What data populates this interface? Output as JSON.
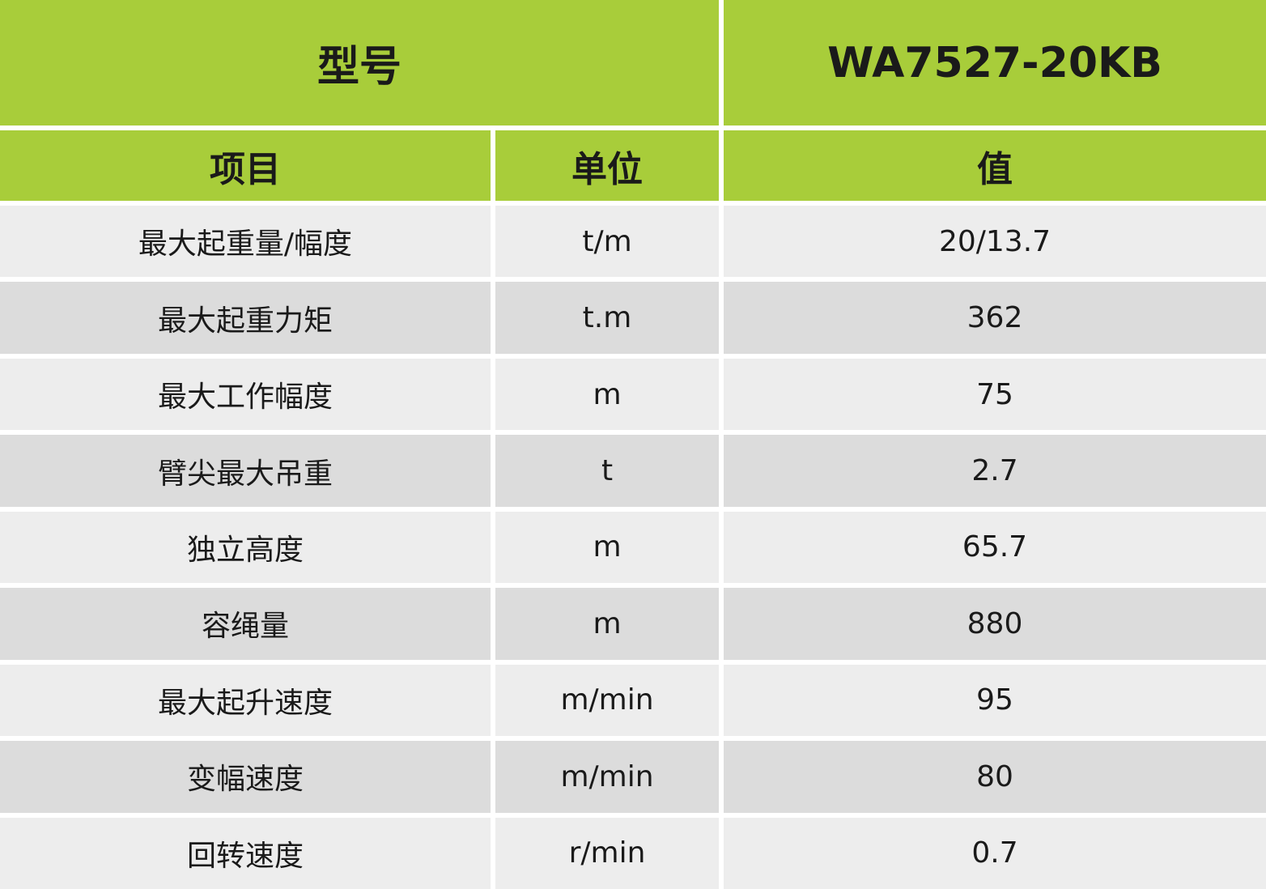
{
  "header": {
    "model_label": "型号",
    "model": "WA7527-20KB"
  },
  "table": {
    "columns": [
      "项目",
      "单位",
      "值"
    ],
    "rows": [
      [
        "最大起重量/幅度",
        "t/m",
        "20/13.7"
      ],
      [
        "最大起重力矩",
        "t.m",
        "362"
      ],
      [
        "最大工作幅度",
        "m",
        "75"
      ],
      [
        "臂尖最大吊重",
        "t",
        "2.7"
      ],
      [
        "独立高度",
        "m",
        "65.7"
      ],
      [
        "容绳量",
        "m",
        "880"
      ],
      [
        "最大起升速度",
        "m/min",
        "95"
      ],
      [
        "变幅速度",
        "m/min",
        "80"
      ],
      [
        "回转速度",
        "r/min",
        "0.7"
      ]
    ]
  }
}
